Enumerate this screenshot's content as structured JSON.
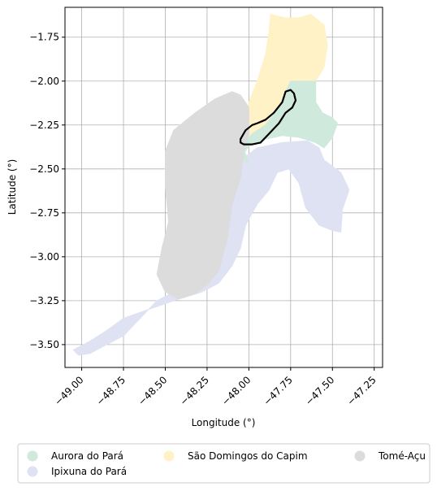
{
  "map": {
    "xlabel": "Longitude (°)",
    "ylabel": "Latitude (°)",
    "xlim": [
      -49.1,
      -47.2
    ],
    "ylim": [
      -3.63,
      -1.58
    ],
    "grid": true,
    "x_ticks": [
      {
        "value": -49.0,
        "label": "−49.00"
      },
      {
        "value": -48.75,
        "label": "−48.75"
      },
      {
        "value": -48.5,
        "label": "−48.50"
      },
      {
        "value": -48.25,
        "label": "−48.25"
      },
      {
        "value": -48.0,
        "label": "−48.00"
      },
      {
        "value": -47.75,
        "label": "−47.75"
      },
      {
        "value": -47.5,
        "label": "−47.50"
      },
      {
        "value": -47.25,
        "label": "−47.25"
      }
    ],
    "y_ticks": [
      {
        "value": -1.75,
        "label": "−1.75"
      },
      {
        "value": -2.0,
        "label": "−2.00"
      },
      {
        "value": -2.25,
        "label": "−2.25"
      },
      {
        "value": -2.5,
        "label": "−2.50"
      },
      {
        "value": -2.75,
        "label": "−2.75"
      },
      {
        "value": -3.0,
        "label": "−3.00"
      },
      {
        "value": -3.25,
        "label": "−3.25"
      },
      {
        "value": -3.5,
        "label": "−3.50"
      }
    ],
    "regions": [
      {
        "name": "Ipixuna do Pará",
        "color": "#dee2f2",
        "coords": [
          [
            -48.05,
            -2.45
          ],
          [
            -47.95,
            -2.38
          ],
          [
            -47.8,
            -2.35
          ],
          [
            -47.65,
            -2.34
          ],
          [
            -47.58,
            -2.38
          ],
          [
            -47.55,
            -2.45
          ],
          [
            -47.45,
            -2.52
          ],
          [
            -47.4,
            -2.62
          ],
          [
            -47.44,
            -2.73
          ],
          [
            -47.45,
            -2.86
          ],
          [
            -47.5,
            -2.85
          ],
          [
            -47.58,
            -2.82
          ],
          [
            -47.66,
            -2.72
          ],
          [
            -47.7,
            -2.58
          ],
          [
            -47.76,
            -2.5
          ],
          [
            -47.83,
            -2.52
          ],
          [
            -47.88,
            -2.62
          ],
          [
            -47.95,
            -2.7
          ],
          [
            -48.02,
            -2.82
          ],
          [
            -48.05,
            -2.95
          ],
          [
            -48.1,
            -3.05
          ],
          [
            -48.18,
            -3.15
          ],
          [
            -48.28,
            -3.2
          ],
          [
            -48.45,
            -3.25
          ],
          [
            -48.6,
            -3.3
          ],
          [
            -48.75,
            -3.35
          ],
          [
            -48.85,
            -3.42
          ],
          [
            -48.95,
            -3.48
          ],
          [
            -49.05,
            -3.53
          ],
          [
            -49.02,
            -3.56
          ],
          [
            -48.95,
            -3.55
          ],
          [
            -48.85,
            -3.5
          ],
          [
            -48.75,
            -3.45
          ],
          [
            -48.65,
            -3.35
          ],
          [
            -48.55,
            -3.25
          ],
          [
            -48.45,
            -3.2
          ],
          [
            -48.3,
            -3.15
          ],
          [
            -48.2,
            -3.0
          ],
          [
            -48.12,
            -2.8
          ],
          [
            -48.08,
            -2.6
          ]
        ]
      },
      {
        "name": "São Domingos do Capim",
        "color": "#fff2c6",
        "coords": [
          [
            -47.87,
            -1.62
          ],
          [
            -47.78,
            -1.64
          ],
          [
            -47.7,
            -1.64
          ],
          [
            -47.63,
            -1.62
          ],
          [
            -47.55,
            -1.68
          ],
          [
            -47.53,
            -1.8
          ],
          [
            -47.55,
            -1.92
          ],
          [
            -47.6,
            -2.0
          ],
          [
            -47.7,
            -2.0
          ],
          [
            -47.74,
            -2.05
          ],
          [
            -47.75,
            -2.12
          ],
          [
            -47.9,
            -2.3
          ],
          [
            -48.0,
            -2.35
          ],
          [
            -48.02,
            -2.25
          ],
          [
            -48.0,
            -2.12
          ],
          [
            -47.95,
            -2.0
          ],
          [
            -47.9,
            -1.85
          ],
          [
            -47.88,
            -1.72
          ]
        ]
      },
      {
        "name": "Aurora do Pará",
        "color": "#cfe9dc",
        "coords": [
          [
            -47.75,
            -2.0
          ],
          [
            -47.6,
            -2.0
          ],
          [
            -47.6,
            -2.12
          ],
          [
            -47.56,
            -2.18
          ],
          [
            -47.5,
            -2.21
          ],
          [
            -47.47,
            -2.24
          ],
          [
            -47.5,
            -2.32
          ],
          [
            -47.55,
            -2.38
          ],
          [
            -47.6,
            -2.35
          ],
          [
            -47.7,
            -2.32
          ],
          [
            -47.8,
            -2.31
          ],
          [
            -47.9,
            -2.33
          ],
          [
            -48.0,
            -2.37
          ],
          [
            -48.05,
            -2.44
          ],
          [
            -48.0,
            -2.47
          ],
          [
            -48.04,
            -2.36
          ],
          [
            -47.98,
            -2.3
          ],
          [
            -47.9,
            -2.25
          ],
          [
            -47.82,
            -2.15
          ],
          [
            -47.78,
            -2.06
          ]
        ]
      },
      {
        "name": "Tomé-Açu",
        "color": "#dcdcdc",
        "coords": [
          [
            -48.05,
            -2.08
          ],
          [
            -48.1,
            -2.06
          ],
          [
            -48.2,
            -2.1
          ],
          [
            -48.32,
            -2.18
          ],
          [
            -48.45,
            -2.28
          ],
          [
            -48.5,
            -2.4
          ],
          [
            -48.5,
            -2.6
          ],
          [
            -48.48,
            -2.8
          ],
          [
            -48.52,
            -2.95
          ],
          [
            -48.55,
            -3.1
          ],
          [
            -48.5,
            -3.2
          ],
          [
            -48.42,
            -3.24
          ],
          [
            -48.32,
            -3.21
          ],
          [
            -48.25,
            -3.16
          ],
          [
            -48.18,
            -3.08
          ],
          [
            -48.13,
            -2.9
          ],
          [
            -48.1,
            -2.7
          ],
          [
            -48.05,
            -2.55
          ],
          [
            -48.03,
            -2.4
          ],
          [
            -48.0,
            -2.3
          ],
          [
            -48.0,
            -2.15
          ]
        ]
      }
    ],
    "highlight": {
      "name": "outlined-area",
      "coords": [
        [
          -48.05,
          -2.33
        ],
        [
          -48.02,
          -2.28
        ],
        [
          -47.98,
          -2.25
        ],
        [
          -47.95,
          -2.24
        ],
        [
          -47.9,
          -2.22
        ],
        [
          -47.85,
          -2.18
        ],
        [
          -47.8,
          -2.12
        ],
        [
          -47.78,
          -2.06
        ],
        [
          -47.75,
          -2.05
        ],
        [
          -47.73,
          -2.07
        ],
        [
          -47.72,
          -2.11
        ],
        [
          -47.74,
          -2.15
        ],
        [
          -47.78,
          -2.18
        ],
        [
          -47.82,
          -2.24
        ],
        [
          -47.88,
          -2.3
        ],
        [
          -47.93,
          -2.35
        ],
        [
          -47.98,
          -2.36
        ],
        [
          -48.03,
          -2.36
        ],
        [
          -48.05,
          -2.35
        ]
      ]
    },
    "legend": {
      "placement": "bottom-center",
      "items": [
        {
          "label": "Aurora do Pará",
          "color": "#cfe9dc"
        },
        {
          "label": "Ipixuna do Pará",
          "color": "#dee2f2"
        },
        {
          "label": "São Domingos do Capim",
          "color": "#fff2c6"
        },
        {
          "label": "Tomé-Açu",
          "color": "#dcdcdc"
        }
      ]
    }
  }
}
